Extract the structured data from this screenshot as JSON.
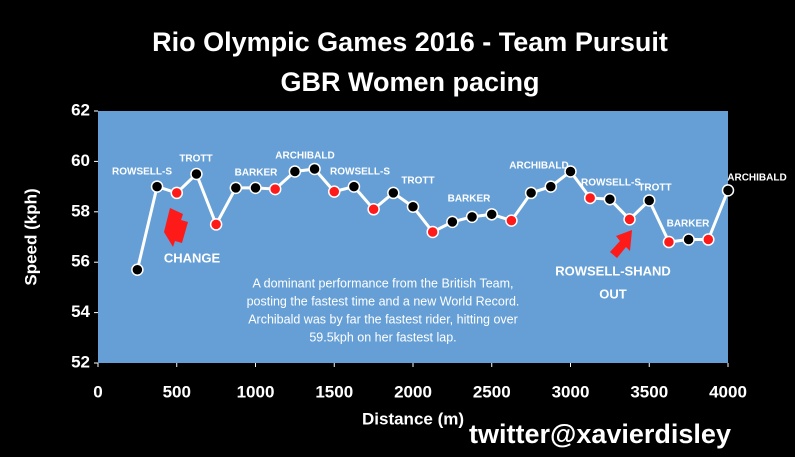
{
  "chart_data": {
    "type": "line",
    "title": [
      "Rio Olympic Games 2016 - Team Pursuit",
      "GBR Women pacing"
    ],
    "x_label": "Distance (m)",
    "y_label": "Speed (kph)",
    "x": [
      250,
      375,
      500,
      625,
      750,
      875,
      1000,
      1125,
      1250,
      1375,
      1500,
      1625,
      1750,
      1875,
      2000,
      2125,
      2250,
      2375,
      2500,
      2625,
      2750,
      2875,
      3000,
      3125,
      3250,
      3375,
      3500,
      3625,
      3750,
      3875,
      4000
    ],
    "series": [
      {
        "name": "Speed",
        "color": "#ffffff",
        "values": [
          55.7,
          59.0,
          58.75,
          59.5,
          57.5,
          58.95,
          58.95,
          58.9,
          59.6,
          59.7,
          58.8,
          59.0,
          58.1,
          58.75,
          58.2,
          57.2,
          57.6,
          57.8,
          57.9,
          57.65,
          58.75,
          59.0,
          59.6,
          58.55,
          58.5,
          57.7,
          58.45,
          56.8,
          56.9,
          56.9,
          58.85
        ],
        "point_colors": [
          "#000000",
          "#000000",
          "#ff1a1a",
          "#000000",
          "#ff1a1a",
          "#000000",
          "#000000",
          "#ff1a1a",
          "#000000",
          "#000000",
          "#ff1a1a",
          "#000000",
          "#ff1a1a",
          "#000000",
          "#000000",
          "#ff1a1a",
          "#000000",
          "#000000",
          "#000000",
          "#ff1a1a",
          "#000000",
          "#000000",
          "#000000",
          "#ff1a1a",
          "#000000",
          "#ff1a1a",
          "#000000",
          "#ff1a1a",
          "#000000",
          "#ff1a1a",
          "#000000"
        ]
      }
    ],
    "xlim": [
      0,
      4000
    ],
    "xticks": [
      0,
      500,
      1000,
      1500,
      2000,
      2500,
      3000,
      3500,
      4000
    ],
    "ylim": [
      52,
      62
    ],
    "yticks": [
      52,
      54,
      56,
      58,
      60,
      62
    ],
    "plot_background": "#659fd6",
    "annotations": [
      "ROWSELL-S",
      "TROTT",
      "BARKER",
      "ARCHIBALD",
      "ROWSELL-S",
      "TROTT",
      "BARKER",
      "ARCHIBALD",
      "ROWSELL-S",
      "TROTT",
      "BARKER",
      "ARCHIBALD",
      "CHANGE",
      "ROWSELL-SHAND",
      "OUT"
    ],
    "note": [
      "A dominant performance from the British Team,",
      "posting the fastest time and a new World Record.",
      "Archibald was by far the fastest rider, hitting  over",
      "59.5kph on her fastest lap."
    ],
    "credit": "twitter@xavierdisley"
  }
}
